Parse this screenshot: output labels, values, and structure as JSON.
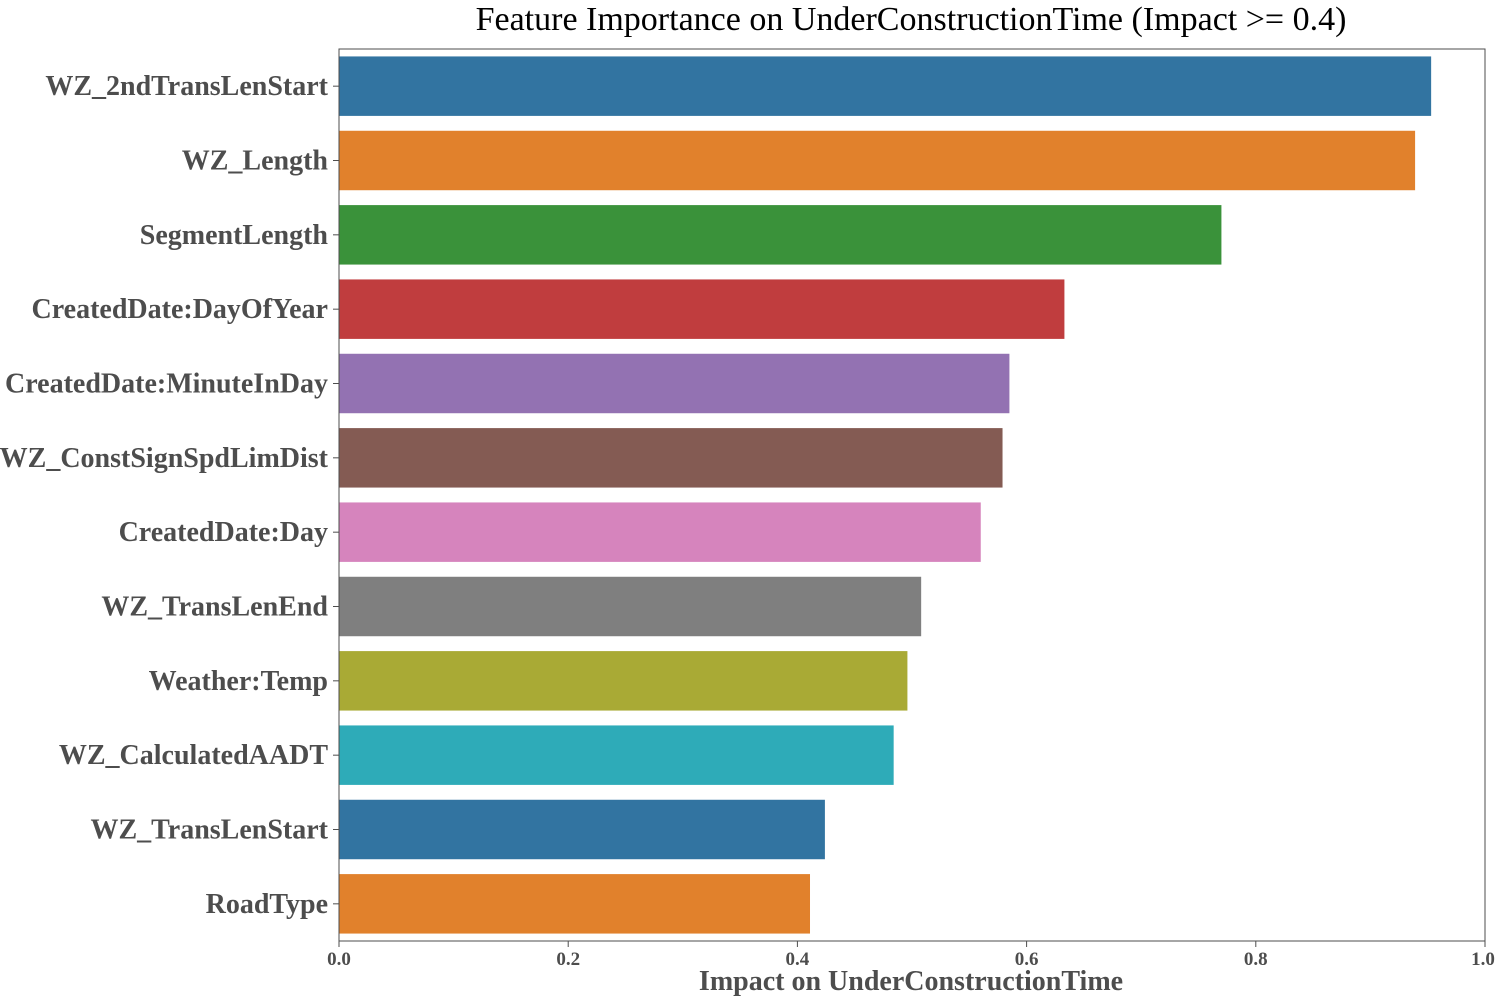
{
  "chart_data": {
    "type": "bar",
    "orientation": "horizontal",
    "title": "Feature Importance on UnderConstructionTime (Impact >= 0.4)",
    "xlabel": "Impact on UnderConstructionTime",
    "ylabel": "",
    "xlim": [
      0.0,
      1.0
    ],
    "xticks": [
      "0.0",
      "0.2",
      "0.4",
      "0.6",
      "0.8",
      "1.0"
    ],
    "grid": false,
    "categories": [
      "WZ_2ndTransLenStart",
      "WZ_Length",
      "SegmentLength",
      "CreatedDate:DayOfYear",
      "CreatedDate:MinuteInDay",
      "WZ_ConstSignSpdLimDist",
      "CreatedDate:Day",
      "WZ_TransLenEnd",
      "Weather:Temp",
      "WZ_CalculatedAADT",
      "WZ_TransLenStart",
      "RoadType"
    ],
    "values": [
      0.953,
      0.939,
      0.77,
      0.633,
      0.585,
      0.579,
      0.56,
      0.508,
      0.496,
      0.484,
      0.424,
      0.411
    ],
    "colors": [
      "#3274a1",
      "#e1812c",
      "#3a923a",
      "#c03d3e",
      "#9372b2",
      "#845b53",
      "#d684bd",
      "#7f7f7f",
      "#a9aa35",
      "#2eabb8",
      "#3274a1",
      "#e1812c"
    ]
  }
}
